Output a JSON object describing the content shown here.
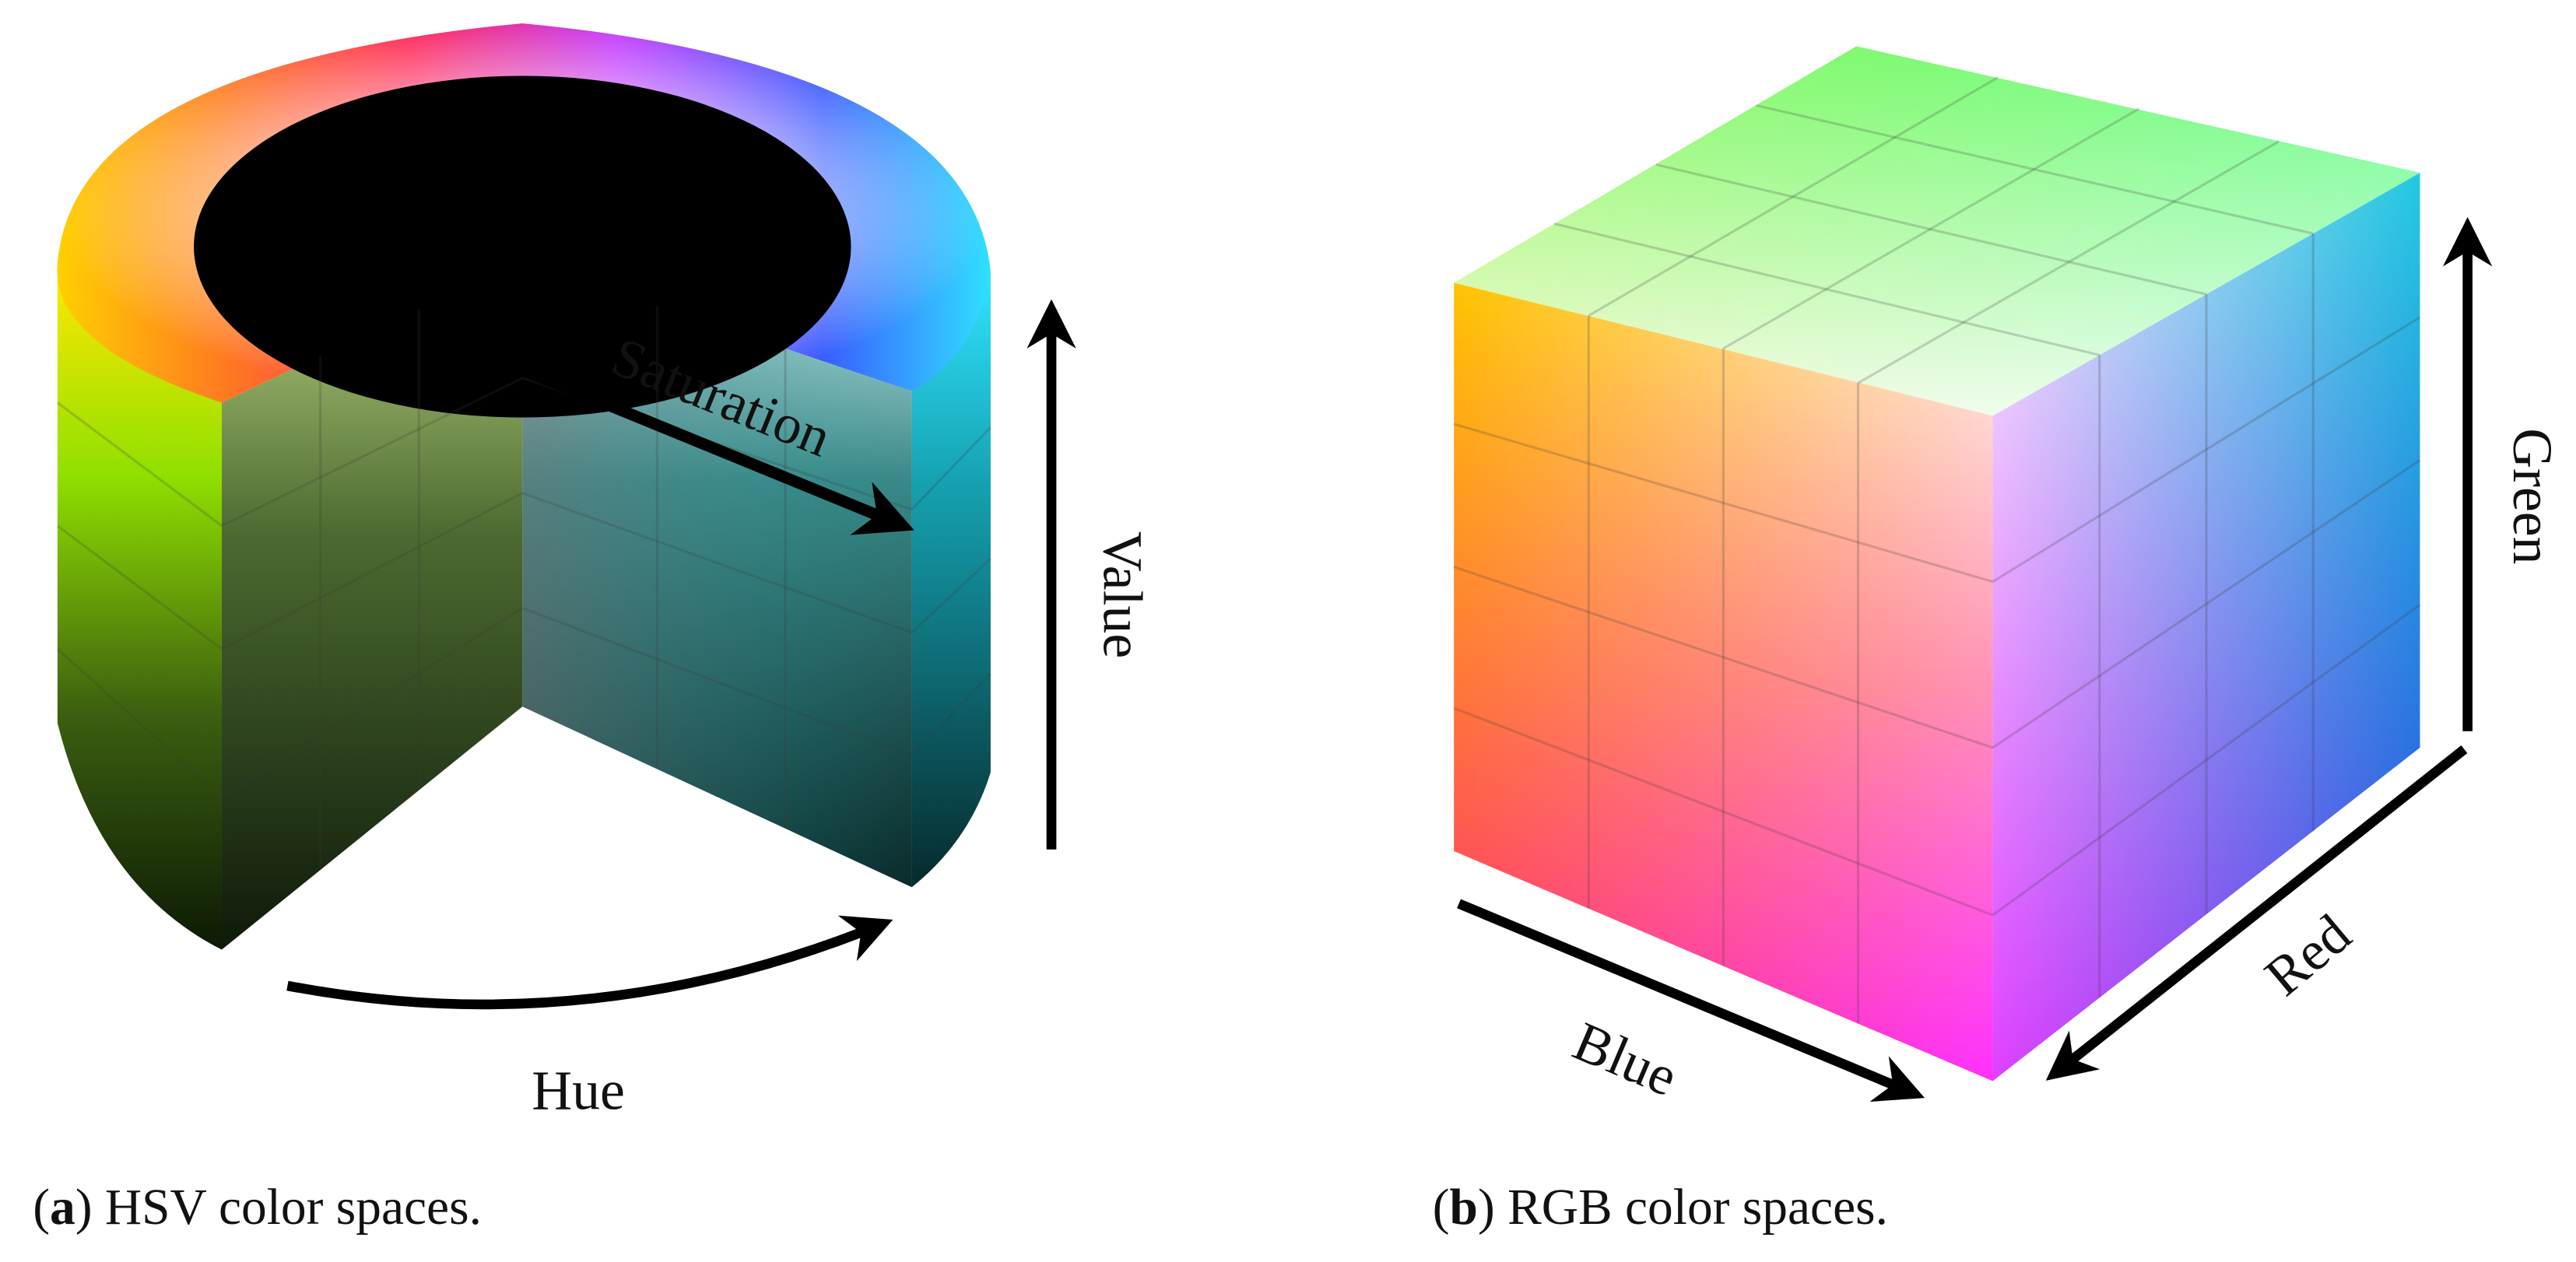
{
  "panels": [
    {
      "caption": [
        "(",
        "a",
        ") HSV color spaces."
      ],
      "axes": {
        "saturation": "Saturation",
        "value": "Value",
        "hue": "Hue"
      }
    },
    {
      "caption": [
        "(",
        "b",
        ") RGB color spaces."
      ],
      "axes": {
        "green": "Green",
        "red": "Red",
        "blue": "Blue"
      }
    }
  ]
}
